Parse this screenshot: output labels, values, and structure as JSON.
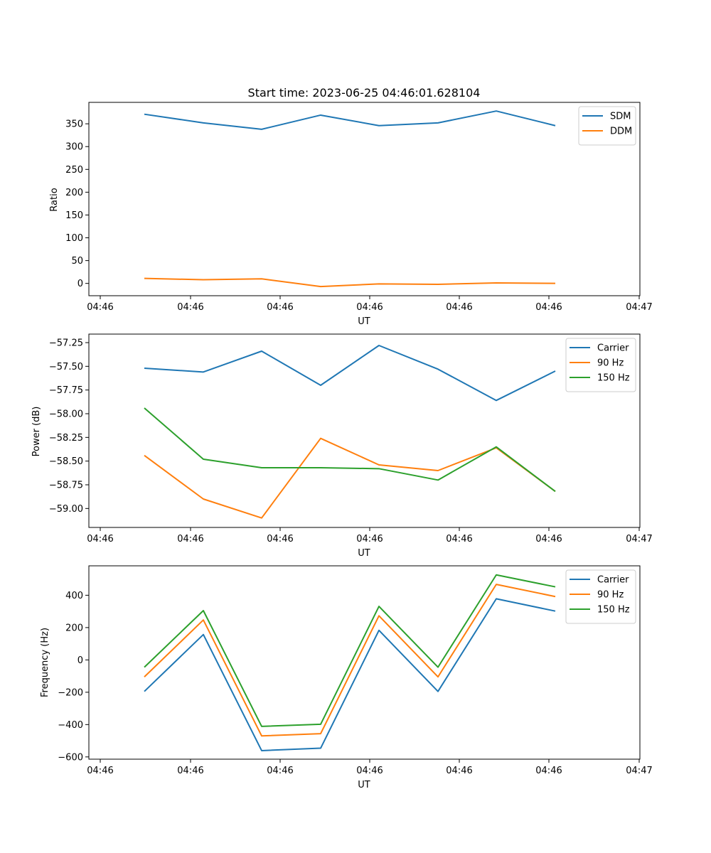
{
  "chart_data": [
    {
      "type": "line",
      "title": "Start time: 2023-06-25 04:46:01.628104",
      "xlabel": "UT",
      "ylabel": "Ratio",
      "x_tick_labels": [
        "04:46",
        "04:46",
        "04:46",
        "04:46",
        "04:46",
        "04:46",
        "04:47"
      ],
      "y_ticks": [
        0,
        50,
        100,
        150,
        200,
        250,
        300,
        350
      ],
      "ylim": [
        -27,
        397
      ],
      "legend": "top-right",
      "series": [
        {
          "name": "SDM",
          "color": "#1f77b4",
          "values": [
            371,
            352,
            338,
            369,
            346,
            352,
            378,
            346
          ]
        },
        {
          "name": "DDM",
          "color": "#ff7f0e",
          "values": [
            11,
            8,
            10,
            -7,
            -1,
            -2,
            1,
            0
          ]
        }
      ]
    },
    {
      "type": "line",
      "title": "",
      "xlabel": "UT",
      "ylabel": "Power (dB)",
      "x_tick_labels": [
        "04:46",
        "04:46",
        "04:46",
        "04:46",
        "04:46",
        "04:46",
        "04:47"
      ],
      "y_ticks": [
        -59.0,
        -58.75,
        -58.5,
        -58.25,
        -58.0,
        -57.75,
        -57.5,
        -57.25
      ],
      "y_tick_labels": [
        "−59.00",
        "−58.75",
        "−58.50",
        "−58.25",
        "−58.00",
        "−57.75",
        "−57.50",
        "−57.25"
      ],
      "ylim": [
        -59.2,
        -57.16
      ],
      "legend": "top-right",
      "series": [
        {
          "name": "Carrier",
          "color": "#1f77b4",
          "values": [
            -57.52,
            -57.56,
            -57.34,
            -57.7,
            -57.28,
            -57.53,
            -57.86,
            -57.55
          ]
        },
        {
          "name": "90 Hz",
          "color": "#ff7f0e",
          "values": [
            -58.44,
            -58.9,
            -59.1,
            -58.26,
            -58.54,
            -58.6,
            -58.36,
            -58.82
          ]
        },
        {
          "name": "150 Hz",
          "color": "#2ca02c",
          "values": [
            -57.94,
            -58.48,
            -58.57,
            -58.57,
            -58.58,
            -58.7,
            -58.35,
            -58.82
          ]
        }
      ]
    },
    {
      "type": "line",
      "title": "",
      "xlabel": "UT",
      "ylabel": "Frequency (Hz)",
      "x_tick_labels": [
        "04:46",
        "04:46",
        "04:46",
        "04:46",
        "04:46",
        "04:46",
        "04:47"
      ],
      "y_ticks": [
        -600,
        -400,
        -200,
        0,
        200,
        400
      ],
      "y_tick_labels": [
        "−600",
        "−400",
        "−200",
        "0",
        "200",
        "400"
      ],
      "ylim": [
        -614,
        582
      ],
      "legend": "top-right",
      "series": [
        {
          "name": "Carrier",
          "color": "#1f77b4",
          "values": [
            -195,
            157,
            -561,
            -546,
            183,
            -195,
            378,
            302
          ]
        },
        {
          "name": "90 Hz",
          "color": "#ff7f0e",
          "values": [
            -105,
            247,
            -470,
            -456,
            273,
            -105,
            467,
            392
          ]
        },
        {
          "name": "150 Hz",
          "color": "#2ca02c",
          "values": [
            -45,
            305,
            -411,
            -398,
            331,
            -45,
            526,
            452
          ]
        }
      ]
    }
  ]
}
